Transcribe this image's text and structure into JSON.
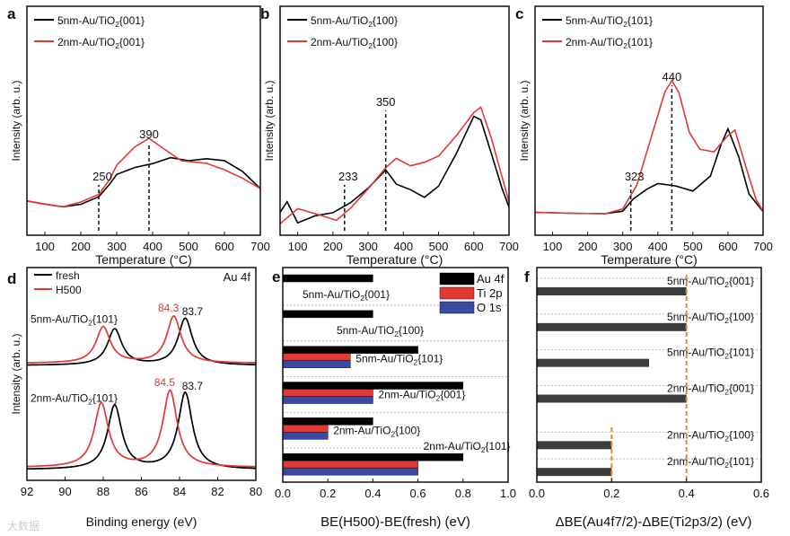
{
  "chart_data": [
    {
      "panel": "a",
      "type": "line",
      "xlabel": "Temperature (°C)",
      "ylabel": "Intensity (arb. u.)",
      "xlim": [
        50,
        700
      ],
      "xticks": [
        100,
        200,
        300,
        400,
        500,
        600,
        700
      ],
      "series": [
        {
          "name": "5nm-Au/TiO2{001}",
          "color": "#000000",
          "x": [
            50,
            100,
            150,
            200,
            250,
            280,
            300,
            350,
            400,
            450,
            500,
            550,
            600,
            650,
            700
          ],
          "y": [
            0.15,
            0.14,
            0.13,
            0.14,
            0.17,
            0.22,
            0.26,
            0.29,
            0.31,
            0.34,
            0.33,
            0.34,
            0.33,
            0.28,
            0.2
          ]
        },
        {
          "name": "2nm-Au/TiO2{001}",
          "color": "#e03a35",
          "x": [
            50,
            100,
            150,
            200,
            250,
            280,
            300,
            350,
            390,
            430,
            480,
            550,
            600,
            650,
            700
          ],
          "y": [
            0.15,
            0.14,
            0.13,
            0.15,
            0.18,
            0.24,
            0.3,
            0.38,
            0.42,
            0.38,
            0.33,
            0.32,
            0.29,
            0.25,
            0.2
          ]
        }
      ],
      "annotations": [
        {
          "x": 250,
          "label": "250"
        },
        {
          "x": 390,
          "label": "390"
        }
      ]
    },
    {
      "panel": "b",
      "type": "line",
      "xlabel": "Temperature (°C)",
      "ylabel": "Intensity (arb. u.)",
      "xlim": [
        50,
        700
      ],
      "xticks": [
        100,
        200,
        300,
        400,
        500,
        600,
        700
      ],
      "series": [
        {
          "name": "5nm-Au/TiO2{100}",
          "color": "#000000",
          "x": [
            50,
            70,
            100,
            150,
            200,
            250,
            300,
            350,
            380,
            420,
            460,
            500,
            550,
            600,
            620,
            650,
            680,
            700
          ],
          "y": [
            0.1,
            0.15,
            0.06,
            0.09,
            0.1,
            0.14,
            0.2,
            0.28,
            0.22,
            0.2,
            0.17,
            0.22,
            0.36,
            0.52,
            0.5,
            0.35,
            0.2,
            0.12
          ]
        },
        {
          "name": "2nm-Au/TiO2{100}",
          "color": "#e03a35",
          "x": [
            50,
            100,
            150,
            210,
            250,
            300,
            350,
            380,
            420,
            460,
            500,
            550,
            600,
            620,
            650,
            680,
            700
          ],
          "y": [
            0.05,
            0.12,
            0.1,
            0.07,
            0.12,
            0.2,
            0.29,
            0.33,
            0.3,
            0.32,
            0.35,
            0.44,
            0.54,
            0.56,
            0.42,
            0.25,
            0.14
          ]
        }
      ],
      "annotations": [
        {
          "x": 233,
          "label": "233"
        },
        {
          "x": 350,
          "label": "350"
        }
      ]
    },
    {
      "panel": "c",
      "type": "line",
      "xlabel": "Temperature (°C)",
      "ylabel": "Intensity (arb. u.)",
      "xlim": [
        50,
        700
      ],
      "xticks": [
        100,
        200,
        300,
        400,
        500,
        600,
        700
      ],
      "series": [
        {
          "name": "5nm-Au/TiO2{101}",
          "color": "#000000",
          "x": [
            50,
            150,
            250,
            300,
            330,
            370,
            400,
            450,
            500,
            550,
            580,
            600,
            630,
            660,
            700
          ],
          "y": [
            0.1,
            0.1,
            0.1,
            0.11,
            0.16,
            0.2,
            0.22,
            0.21,
            0.19,
            0.26,
            0.4,
            0.47,
            0.35,
            0.18,
            0.1
          ]
        },
        {
          "name": "2nm-Au/TiO2{101}",
          "color": "#e03a35",
          "x": [
            50,
            150,
            250,
            300,
            340,
            380,
            420,
            440,
            460,
            490,
            520,
            560,
            600,
            620,
            650,
            680,
            700
          ],
          "y": [
            0.1,
            0.1,
            0.1,
            0.12,
            0.22,
            0.42,
            0.62,
            0.67,
            0.62,
            0.45,
            0.38,
            0.37,
            0.44,
            0.46,
            0.3,
            0.15,
            0.1
          ]
        }
      ],
      "annotations": [
        {
          "x": 323,
          "label": "323"
        },
        {
          "x": 440,
          "label": "440"
        }
      ]
    },
    {
      "panel": "d",
      "type": "line",
      "title": "Au 4f",
      "xlabel": "Binding energy (eV)",
      "ylabel": "Intensity (arb. u.)",
      "xlim": [
        92,
        80
      ],
      "xticks": [
        92,
        90,
        88,
        86,
        84,
        82,
        80
      ],
      "legend": [
        {
          "name": "fresh",
          "color": "#000000"
        },
        {
          "name": "H500",
          "color": "#e03a35"
        }
      ],
      "groups": [
        {
          "label": "5nm-Au/TiO2{101}",
          "baseline": 0.54,
          "fresh_peaks": [
            87.4,
            83.7
          ],
          "h500_peaks": [
            88.0,
            84.3
          ],
          "heights": [
            0.17,
            0.22
          ],
          "label_fresh": "83.7",
          "label_h500": "84.3"
        },
        {
          "label": "2nm-Au/TiO2{101}",
          "baseline": 0.05,
          "fresh_peaks": [
            87.4,
            83.7
          ],
          "h500_peaks": [
            88.1,
            84.5
          ],
          "heights": [
            0.3,
            0.36
          ],
          "label_fresh": "83.7",
          "label_h500": "84.5"
        }
      ]
    },
    {
      "panel": "e",
      "type": "bar",
      "orientation": "horizontal",
      "xlabel": "BE(H500)-BE(fresh) (eV)",
      "xlim": [
        0,
        1.0
      ],
      "xticks": [
        "0.0",
        "0.2",
        "0.4",
        "0.6",
        "0.8",
        "1.0"
      ],
      "categories": [
        "5nm-Au/TiO2{001}",
        "5nm-Au/TiO2{100}",
        "5nm-Au/TiO2{101}",
        "2nm-Au/TiO2{001}",
        "2nm-Au/TiO2{100}",
        "2nm-Au/TiO2{101}"
      ],
      "series": [
        {
          "name": "Au 4f",
          "color": "#000000",
          "values": [
            0.4,
            0.4,
            0.6,
            0.8,
            0.4,
            0.8
          ]
        },
        {
          "name": "Ti 2p",
          "color": "#e03a35",
          "values": [
            0,
            0,
            0.3,
            0.4,
            0.2,
            0.6
          ]
        },
        {
          "name": "O 1s",
          "color": "#3a4aa0",
          "values": [
            0,
            0,
            0.3,
            0.4,
            0.2,
            0.6
          ]
        }
      ]
    },
    {
      "panel": "f",
      "type": "bar",
      "orientation": "horizontal",
      "xlabel": "ΔBE(Au4f7/2)-ΔBE(Ti2p3/2) (eV)",
      "xlim": [
        0,
        0.6
      ],
      "xticks": [
        "0.0",
        "0.2",
        "0.4",
        "0.6"
      ],
      "categories": [
        "5nm-Au/TiO2{001}",
        "5nm-Au/TiO2{100}",
        "5nm-Au/TiO2{101}",
        "2nm-Au/TiO2{001}",
        "2nm-Au/TiO2{100}",
        "2nm-Au/TiO2{101}"
      ],
      "values": [
        0.4,
        0.4,
        0.3,
        0.4,
        0.2,
        0.2
      ],
      "color": "#3a3d40",
      "reference_lines": [
        0.2,
        0.4
      ],
      "reference_color": "#e08a3a"
    }
  ],
  "watermark": "大数据"
}
